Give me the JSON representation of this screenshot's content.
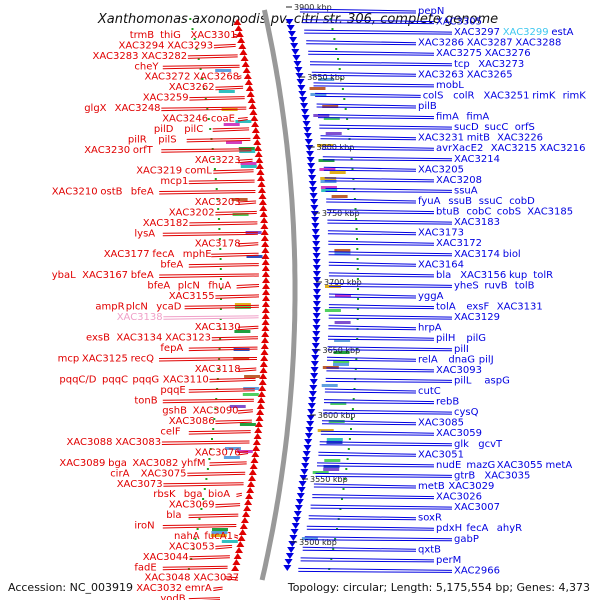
{
  "title": "Xanthomonas axonopodis pv. citri str. 306, complete genome",
  "footer": {
    "accession": "Accession: NC_003919",
    "topology": "Topology: circular; Length: 5,175,554 bp; Genes: 4,373"
  },
  "colors": {
    "forward_strand": "#e00000",
    "reverse_strand": "#0000e0",
    "pseudogene": "#f0a0c8",
    "highlight": "#40c8f0",
    "backbone": "#999999"
  },
  "scale_labels": [
    "3900 kbp",
    "3850 kbp",
    "3800 kbp",
    "3750 kbp",
    "3700 kbp",
    "3650 kbp",
    "3600 kbp",
    "3550 kbp",
    "3500 kbp"
  ],
  "left_labels": [
    [
      "trmB",
      "thiG",
      "XAC3301"
    ],
    [
      "XAC3294",
      "XAC3293"
    ],
    [
      "XAC3283",
      "XAC3282"
    ],
    [
      "cheY"
    ],
    [
      "XAC3272",
      "XAC3268"
    ],
    [
      "XAC3262"
    ],
    [
      "XAC3259"
    ],
    [
      "glgX",
      "XAC3248"
    ],
    [
      "XAC3246",
      "coaE"
    ],
    [
      "pilD",
      "pilC"
    ],
    [
      "pilR",
      "pilS"
    ],
    [
      "XAC3230",
      "orfT"
    ],
    [
      "XAC3223"
    ],
    [
      "XAC3219",
      "comL"
    ],
    [
      "mcp1"
    ],
    [
      "XAC3210",
      "ostB",
      "bfeA"
    ],
    [
      "XAC3203"
    ],
    [
      "XAC3202"
    ],
    [
      "XAC3182"
    ],
    [
      "lysA"
    ],
    [
      "XAC3178"
    ],
    [
      "XAC3177",
      "fecA",
      "mphE"
    ],
    [
      "bfeA"
    ],
    [
      "ybaL",
      "XAC3167",
      "bfeA"
    ],
    [
      "bfeA",
      "plcN",
      "fhuA"
    ],
    [
      "XAC3155"
    ],
    [
      "ampR",
      "plcN",
      "ycaD"
    ],
    [
      "XAC3138"
    ],
    [
      "XAC3130"
    ],
    [
      "exsB",
      "XAC3134",
      "XAC3123"
    ],
    [
      "fepA"
    ],
    [
      "mcp",
      "XAC3125",
      "recQ"
    ],
    [
      "XAC3118"
    ],
    [
      "pqqC/D",
      "pqqC",
      "pqqG",
      "XAC3110"
    ],
    [
      "pqqE"
    ],
    [
      "tonB"
    ],
    [
      "gshB",
      "XAC3090"
    ],
    [
      "XAC3086"
    ],
    [
      "celF"
    ],
    [
      "XAC3088",
      "XAC3083"
    ],
    [
      "XAC3076"
    ],
    [
      "XAC3089",
      "bga",
      "XAC3082",
      "yhfM"
    ],
    [
      "cirA",
      "XAC3075"
    ],
    [
      "XAC3073"
    ],
    [
      "rbsK",
      "bga",
      "bioA"
    ],
    [
      "XAC3069"
    ],
    [
      "bla"
    ],
    [
      "iroN"
    ],
    [
      "nahA",
      "fucA1"
    ],
    [
      "XAC3053"
    ],
    [
      "XAC3044"
    ],
    [
      "fadE"
    ],
    [
      "XAC3048",
      "XAC3037"
    ],
    [
      "XAC3032",
      "emrA"
    ],
    [
      "yodB"
    ]
  ],
  "right_labels": [
    [
      "pepN"
    ],
    [
      "XAC3305"
    ],
    [
      "XAC3297",
      "XAC3299",
      "estA"
    ],
    [
      "XAC3286",
      "XAC3287",
      "XAC3288"
    ],
    [
      "XAC3275",
      "XAC3276"
    ],
    [
      "tcp",
      "XAC3273"
    ],
    [
      "XAC3263",
      "XAC3265"
    ],
    [
      "mobL"
    ],
    [
      "colS",
      "colR",
      "XAC3251",
      "rimK",
      "rimK"
    ],
    [
      "pilB"
    ],
    [
      "fimA",
      "fimA"
    ],
    [
      "sucD",
      "sucC",
      "orfS"
    ],
    [
      "XAC3231",
      "mitB",
      "XAC3226"
    ],
    [
      "avrXacE2",
      "XAC3215",
      "XAC3216"
    ],
    [
      "XAC3214"
    ],
    [
      "XAC3205"
    ],
    [
      "XAC3208"
    ],
    [
      "ssuA"
    ],
    [
      "fyuA",
      "ssuB",
      "ssuC",
      "cobD"
    ],
    [
      "btuB",
      "cobC",
      "cobS",
      "XAC3185"
    ],
    [
      "XAC3183"
    ],
    [
      "XAC3173"
    ],
    [
      "XAC3172"
    ],
    [
      "XAC3174",
      "biol"
    ],
    [
      "XAC3164"
    ],
    [
      "bla",
      "XAC3156",
      "kup",
      "tolR"
    ],
    [
      "yheS",
      "ruvB",
      "tolB"
    ],
    [
      "yggA"
    ],
    [
      "tolA",
      "exsF",
      "XAC3131"
    ],
    [
      "XAC3129"
    ],
    [
      "hrpA"
    ],
    [
      "pilH",
      "pilG"
    ],
    [
      "pilI"
    ],
    [
      "relA",
      "dnaG",
      "pilJ"
    ],
    [
      "XAC3093"
    ],
    [
      "pilL",
      "aspG"
    ],
    [
      "cutC"
    ],
    [
      "rebB"
    ],
    [
      "cysQ"
    ],
    [
      "XAC3085"
    ],
    [
      "XAC3059"
    ],
    [
      "glk",
      "gcvT"
    ],
    [
      "XAC3051"
    ],
    [
      "nudE",
      "mazG",
      "XAC3055",
      "metA"
    ],
    [
      "gtrB",
      "XAC3035"
    ],
    [
      "metB",
      "XAC3029"
    ],
    [
      "XAC3026"
    ],
    [
      "XAC3007"
    ],
    [
      "soxR"
    ],
    [
      "pdxH",
      "fecA",
      "ahyR"
    ],
    [
      "gabP"
    ],
    [
      "qxtB"
    ],
    [
      "perM"
    ],
    [
      "XAC2966"
    ]
  ]
}
